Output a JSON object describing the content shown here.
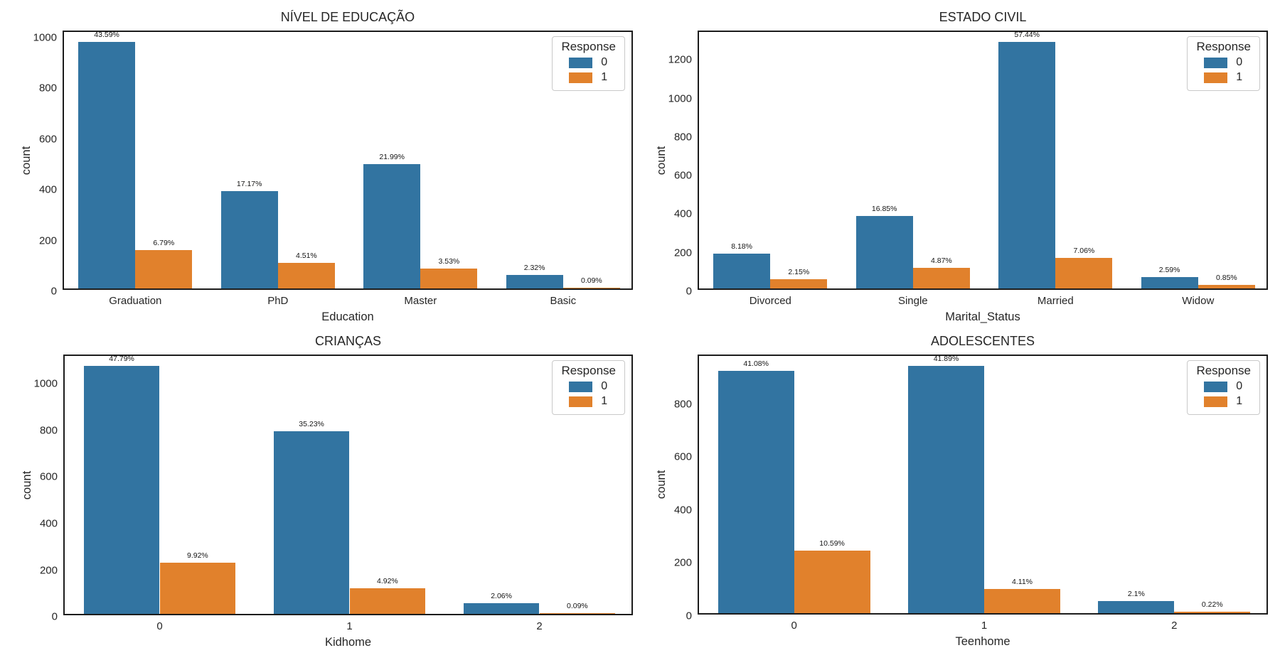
{
  "figure": {
    "background": "#ffffff"
  },
  "palette": {
    "response_0": "#3274a1",
    "response_1": "#e1812c"
  },
  "chart_data": [
    {
      "type": "bar",
      "title": "NÍVEL DE EDUCAÇÃO",
      "xlabel": "Education",
      "ylabel": "count",
      "legend_title": "Response",
      "legend_position": "upper right",
      "grid": false,
      "categories": [
        "Graduation",
        "PhD",
        "Master",
        "Basic"
      ],
      "yticks": [
        0,
        200,
        400,
        600,
        800,
        1000
      ],
      "ylim": [
        0,
        1021
      ],
      "series": [
        {
          "name": "0",
          "color": "#3274a1",
          "values": [
            970,
            382,
            489,
            52
          ],
          "bar_labels": [
            "43.59%",
            "17.17%",
            "21.99%",
            "2.32%"
          ]
        },
        {
          "name": "1",
          "color": "#e1812c",
          "values": [
            151,
            100,
            79,
            2
          ],
          "bar_labels": [
            "6.79%",
            "4.51%",
            "3.53%",
            "0.09%"
          ]
        }
      ]
    },
    {
      "type": "bar",
      "title": "ESTADO CIVIL",
      "xlabel": "Marital_Status",
      "ylabel": "count",
      "legend_title": "Response",
      "legend_position": "upper right",
      "grid": false,
      "categories": [
        "Divorced",
        "Single",
        "Married",
        "Widow"
      ],
      "yticks": [
        0,
        200,
        400,
        600,
        800,
        1000,
        1200
      ],
      "ylim": [
        0,
        1345
      ],
      "series": [
        {
          "name": "0",
          "color": "#3274a1",
          "values": [
            182,
            375,
            1278,
            58
          ],
          "bar_labels": [
            "8.18%",
            "16.85%",
            "57.44%",
            "2.59%"
          ]
        },
        {
          "name": "1",
          "color": "#e1812c",
          "values": [
            48,
            108,
            157,
            19
          ],
          "bar_labels": [
            "2.15%",
            "4.87%",
            "7.06%",
            "0.85%"
          ]
        }
      ]
    },
    {
      "type": "bar",
      "title": "CRIANÇAS",
      "xlabel": "Kidhome",
      "ylabel": "count",
      "legend_title": "Response",
      "legend_position": "upper right",
      "grid": false,
      "categories": [
        "0",
        "1",
        "2"
      ],
      "yticks": [
        0,
        200,
        400,
        600,
        800,
        1000
      ],
      "ylim": [
        0,
        1120
      ],
      "series": [
        {
          "name": "0",
          "color": "#3274a1",
          "values": [
            1064,
            784,
            46
          ],
          "bar_labels": [
            "47.79%",
            "35.23%",
            "2.06%"
          ]
        },
        {
          "name": "1",
          "color": "#e1812c",
          "values": [
            221,
            110,
            2
          ],
          "bar_labels": [
            "9.92%",
            "4.92%",
            "0.09%"
          ]
        }
      ]
    },
    {
      "type": "bar",
      "title": "ADOLESCENTES",
      "xlabel": "Teenhome",
      "ylabel": "count",
      "legend_title": "Response",
      "legend_position": "upper right",
      "grid": false,
      "categories": [
        "0",
        "1",
        "2"
      ],
      "yticks": [
        0,
        200,
        400,
        600,
        800
      ],
      "ylim": [
        0,
        981
      ],
      "series": [
        {
          "name": "0",
          "color": "#3274a1",
          "values": [
            914,
            932,
            47
          ],
          "bar_labels": [
            "41.08%",
            "41.89%",
            "2.1%"
          ]
        },
        {
          "name": "1",
          "color": "#e1812c",
          "values": [
            236,
            91,
            5
          ],
          "bar_labels": [
            "10.59%",
            "4.11%",
            "0.22%"
          ]
        }
      ]
    }
  ]
}
